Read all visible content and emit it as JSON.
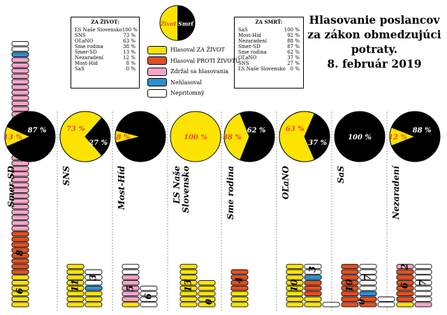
{
  "title": {
    "line1": "Hlasovanie poslancov",
    "line2": "za zákon obmedzujúci",
    "line3": "potraty.",
    "line4": "8. február 2019"
  },
  "logo": {
    "left": "Život",
    "right": "Smrť"
  },
  "colors": {
    "za": "#fce400",
    "proti": "#e3501f",
    "zdrzal": "#f4a6c8",
    "nehlasoval": "#2d8fd4",
    "nepritomny": "#ffffff",
    "black": "#000000"
  },
  "za_zivot": {
    "header": "ZA ŽIVOT:",
    "rows": [
      {
        "name": "ĽS Naše Slovensko",
        "pct": "100 %"
      },
      {
        "name": "SNS",
        "pct": "73 %"
      },
      {
        "name": "OĽaNO",
        "pct": "63 %"
      },
      {
        "name": "Sme rodina",
        "pct": "38 %"
      },
      {
        "name": "Smer-SD",
        "pct": "13 %"
      },
      {
        "name": "Nezaradení",
        "pct": "12 %"
      },
      {
        "name": "Most-Híd",
        "pct": "8 %"
      },
      {
        "name": "SaS",
        "pct": "0 %"
      }
    ]
  },
  "za_smrt": {
    "header": "ZA SMRŤ:",
    "rows": [
      {
        "name": "SaS",
        "pct": "100 %"
      },
      {
        "name": "Most-Híd",
        "pct": "92 %"
      },
      {
        "name": "Nezaradení",
        "pct": "88 %"
      },
      {
        "name": "Smer-SD",
        "pct": "87 %"
      },
      {
        "name": "Sme rodina",
        "pct": "62 %"
      },
      {
        "name": "OĽaNO",
        "pct": "37 %"
      },
      {
        "name": "SNS",
        "pct": "27 %"
      },
      {
        "name": "ĽS Naše Slovensko",
        "pct": "0 %"
      }
    ]
  },
  "legend": [
    {
      "key": "za",
      "label": "Hlasoval ZA ŽIVOT"
    },
    {
      "key": "proti",
      "label": "Hlasoval PROTI ŽIVOTU"
    },
    {
      "key": "zdrzal",
      "label": "Zdržal sa hlasovania"
    },
    {
      "key": "nehlasoval",
      "label": "Nehlasoval"
    },
    {
      "key": "nepritomny",
      "label": "Nepritomný"
    }
  ],
  "chart_data": {
    "type": "bar",
    "stacking": "stacked unit bars (one box per MP) with pie charts per party",
    "categories": [
      "Smer-SD",
      "SNS",
      "Most-Híd",
      "ĽS Naše Slovensko",
      "Sme rodina",
      "OĽaNO",
      "SaS",
      "Nezaradení"
    ],
    "series": [
      {
        "key": "za",
        "name": "Hlasoval ZA ŽIVOT",
        "values": [
          6,
          11,
          1,
          13,
          3,
          10,
          0,
          1
        ]
      },
      {
        "key": "proti",
        "name": "Hlasoval PROTI ŽIVOTU",
        "values": [
          8,
          0,
          0,
          0,
          4,
          3,
          10,
          6
        ]
      },
      {
        "key": "zdrzal",
        "name": "Zdržal sa hlasovania",
        "values": [
          32,
          0,
          5,
          0,
          0,
          0,
          0,
          2
        ]
      },
      {
        "key": "nehlasoval",
        "name": "Nehlasoval",
        "values": [
          1,
          1,
          0,
          0,
          0,
          1,
          1,
          0
        ]
      },
      {
        "key": "nepritomny",
        "name": "Nepritomný",
        "values": [
          2,
          3,
          6,
          0,
          0,
          3,
          7,
          7
        ]
      }
    ],
    "segment_labels": [
      [
        "6",
        "8",
        "32",
        "",
        ""
      ],
      [
        "11",
        "",
        "",
        "",
        "3"
      ],
      [
        "",
        "",
        "5",
        "",
        "6"
      ],
      [
        "13",
        "",
        "",
        "",
        ""
      ],
      [
        "",
        "4",
        "",
        "",
        ""
      ],
      [
        "10",
        "",
        "",
        "",
        "3"
      ],
      [
        "",
        "10",
        "",
        "",
        "7"
      ],
      [
        "",
        "6",
        "2",
        "",
        "7"
      ]
    ],
    "zero_labels": [
      "",
      "",
      "",
      "0",
      "",
      "",
      "0",
      ""
    ],
    "pies": [
      {
        "party": "Smer-SD",
        "za": 13,
        "proti": 87,
        "za_label": "13 %",
        "proti_label": "87 %"
      },
      {
        "party": "SNS",
        "za": 73,
        "proti": 27,
        "za_label": "73 %",
        "proti_label": "27 %"
      },
      {
        "party": "Most-Híd",
        "za": 8,
        "proti": 92,
        "za_label": "8 %",
        "proti_label": ""
      },
      {
        "party": "ĽS Naše Slovensko",
        "za": 100,
        "proti": 0,
        "za_label": "100 %",
        "proti_label": ""
      },
      {
        "party": "Sme rodina",
        "za": 38,
        "proti": 62,
        "za_label": "38 %",
        "proti_label": "62 %"
      },
      {
        "party": "OĽaNO",
        "za": 63,
        "proti": 37,
        "za_label": "63 %",
        "proti_label": "37 %"
      },
      {
        "party": "SaS",
        "za": 0,
        "proti": 100,
        "za_label": "",
        "proti_label": "100 %"
      },
      {
        "party": "Nezaradení",
        "za": 12,
        "proti": 88,
        "za_label": "12 %",
        "proti_label": "88 %"
      }
    ],
    "party_labels": [
      {
        "lines": [
          "Smer-SD"
        ]
      },
      {
        "lines": [
          "SNS"
        ]
      },
      {
        "lines": [
          "Most-Híd"
        ]
      },
      {
        "lines": [
          "ĽS Naše",
          "Slovensko"
        ]
      },
      {
        "lines": [
          "Sme rodina"
        ]
      },
      {
        "lines": [
          "OĽaNO"
        ]
      },
      {
        "lines": [
          "SaS"
        ]
      },
      {
        "lines": [
          "Nezaradení"
        ]
      }
    ]
  }
}
